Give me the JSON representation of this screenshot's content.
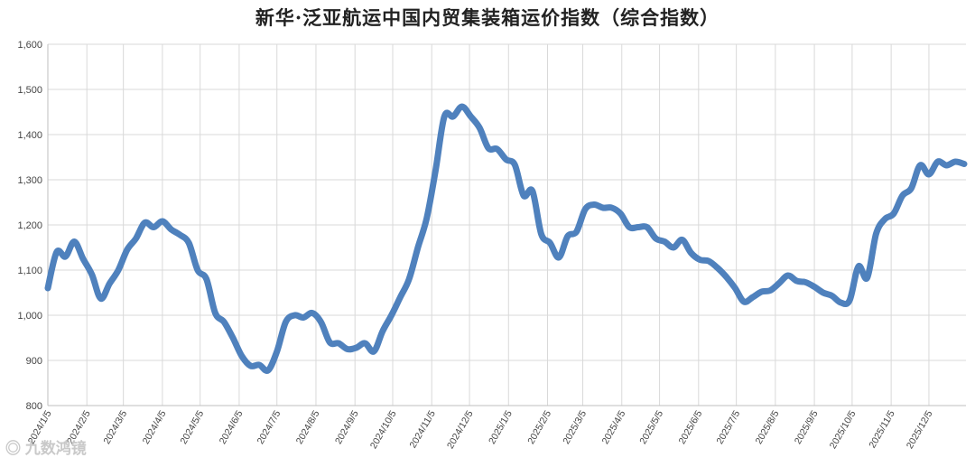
{
  "chart_data": {
    "type": "line",
    "title": "新华·泛亚航运中国内贸集装箱运价指数（综合指数）",
    "xlabel": "",
    "ylabel": "",
    "ylim": [
      800,
      1600
    ],
    "yticks": [
      800,
      900,
      1000,
      1100,
      1200,
      1300,
      1400,
      1500,
      1600
    ],
    "ytick_labels": [
      "800",
      "900",
      "1,000",
      "1,100",
      "1,200",
      "1,300",
      "1,400",
      "1,500",
      "1,600"
    ],
    "xtick_labels": [
      "2024/1/5",
      "2024/2/5",
      "2024/3/5",
      "2024/4/5",
      "2024/5/5",
      "2024/6/5",
      "2024/7/5",
      "2024/8/5",
      "2024/9/5",
      "2024/10/5",
      "2024/11/5",
      "2024/12/5",
      "2025/1/5",
      "2025/2/5",
      "2025/3/5",
      "2025/4/5",
      "2025/5/5",
      "2025/6/5",
      "2025/7/5",
      "2025/8/5",
      "2025/9/5",
      "2025/10/5",
      "2025/11/5",
      "2025/12/5"
    ],
    "grid": true,
    "line_color": "#4f81bd",
    "series": [
      {
        "x": [
          "2024/1/5",
          "2024/1/12",
          "2024/1/19",
          "2024/1/26",
          "2024/2/2",
          "2024/2/9",
          "2024/2/16",
          "2024/2/23",
          "2024/3/1",
          "2024/3/8",
          "2024/3/15",
          "2024/3/22",
          "2024/3/29",
          "2024/4/5",
          "2024/4/12",
          "2024/4/19",
          "2024/4/26",
          "2024/5/3",
          "2024/5/10",
          "2024/5/17",
          "2024/5/24",
          "2024/5/31",
          "2024/6/7",
          "2024/6/14",
          "2024/6/21",
          "2024/6/28",
          "2024/7/5",
          "2024/7/12",
          "2024/7/19",
          "2024/7/26",
          "2024/8/2",
          "2024/8/9",
          "2024/8/16",
          "2024/8/23",
          "2024/8/30",
          "2024/9/6",
          "2024/9/13",
          "2024/9/20",
          "2024/9/27",
          "2024/10/4",
          "2024/10/11",
          "2024/10/18",
          "2024/10/25",
          "2024/11/1",
          "2024/11/8",
          "2024/11/15",
          "2024/11/22",
          "2024/11/29",
          "2024/12/6",
          "2024/12/13",
          "2024/12/20",
          "2024/12/27",
          "2025/1/3",
          "2025/1/10",
          "2025/1/17",
          "2025/1/24",
          "2025/1/31",
          "2025/2/7",
          "2025/2/14",
          "2025/2/21",
          "2025/2/28",
          "2025/3/7",
          "2025/3/14",
          "2025/3/21",
          "2025/3/28",
          "2025/4/4",
          "2025/4/11",
          "2025/4/18",
          "2025/4/25",
          "2025/5/2",
          "2025/5/9",
          "2025/5/16",
          "2025/5/23",
          "2025/5/30",
          "2025/6/6",
          "2025/6/13",
          "2025/6/20",
          "2025/6/27",
          "2025/7/4",
          "2025/7/11",
          "2025/7/18",
          "2025/7/25",
          "2025/8/1",
          "2025/8/8",
          "2025/8/15",
          "2025/8/22",
          "2025/8/29",
          "2025/9/5",
          "2025/9/12",
          "2025/9/19",
          "2025/9/26",
          "2025/10/3",
          "2025/10/10",
          "2025/10/17",
          "2025/10/24",
          "2025/10/31",
          "2025/11/7",
          "2025/11/14",
          "2025/11/21",
          "2025/11/28",
          "2025/12/5",
          "2025/12/12",
          "2025/12/19",
          "2025/12/26",
          "2026/1/2"
        ],
        "values": [
          1060,
          1140,
          1130,
          1163,
          1125,
          1090,
          1037,
          1070,
          1100,
          1145,
          1170,
          1205,
          1195,
          1208,
          1190,
          1178,
          1160,
          1100,
          1080,
          1005,
          985,
          950,
          910,
          888,
          890,
          878,
          920,
          985,
          1000,
          995,
          1005,
          985,
          940,
          938,
          925,
          928,
          938,
          920,
          965,
          1000,
          1040,
          1080,
          1150,
          1215,
          1320,
          1440,
          1440,
          1462,
          1440,
          1415,
          1370,
          1368,
          1345,
          1333,
          1265,
          1275,
          1180,
          1160,
          1128,
          1175,
          1185,
          1235,
          1245,
          1238,
          1238,
          1225,
          1195,
          1195,
          1195,
          1170,
          1163,
          1150,
          1167,
          1138,
          1123,
          1120,
          1105,
          1085,
          1060,
          1030,
          1040,
          1052,
          1055,
          1071,
          1088,
          1076,
          1073,
          1063,
          1050,
          1043,
          1028,
          1033,
          1108,
          1083,
          1180,
          1213,
          1225,
          1265,
          1281,
          1332,
          1312,
          1340,
          1332,
          1340,
          1335
        ]
      }
    ],
    "watermark": "九数鸿镜"
  }
}
